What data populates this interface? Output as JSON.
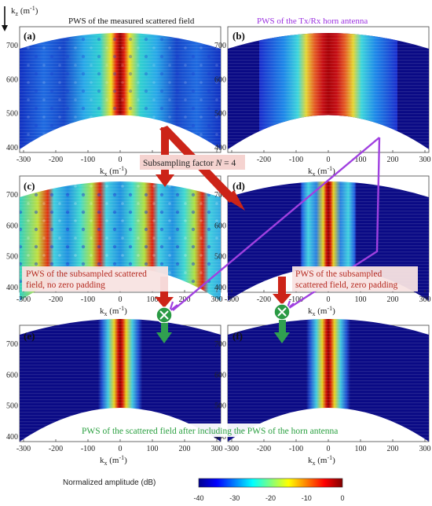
{
  "axis": {
    "kz_label": "k",
    "kz_sub": "z",
    "kz_unit": " (m",
    "kz_exp": "-1",
    "kz_close": ")",
    "kx_label": "k",
    "kx_sub": "x",
    "kx_unit": " (m",
    "kx_exp": "-1",
    "kx_close": ")",
    "x_ticks": [
      "-300",
      "-200",
      "-100",
      "0",
      "100",
      "200",
      "300"
    ],
    "y_ticks": [
      "700",
      "600",
      "500",
      "400"
    ]
  },
  "panels": {
    "a": {
      "letter": "(a)",
      "title": "PWS of the measured scattered field"
    },
    "b": {
      "letter": "(b)",
      "title": "PWS of the Tx/Rx horn antenna"
    },
    "c": {
      "letter": "(c)"
    },
    "d": {
      "letter": "(d)"
    },
    "e": {
      "letter": "(e)"
    },
    "f": {
      "letter": "(f)"
    }
  },
  "annotations": {
    "subsampling_prefix": "Subsampling factor ",
    "subsampling_N": "N",
    "subsampling_suffix": " = 4",
    "c_note_line1": "PWS of the subsampled scattered",
    "c_note_line2": "field, no zero padding",
    "d_note_line1": "PWS of the subsampled",
    "d_note_line2": "scattered field, zero padding",
    "bottom_note": "PWS of the scattered field  after including the PWS of the horn antenna"
  },
  "colorbar": {
    "label": "Normalized amplitude (dB)",
    "ticks": [
      "-40",
      "-30",
      "-20",
      "-10",
      "0"
    ]
  },
  "colors": {
    "red_note": "#b52a20",
    "purple_title": "#9b30e0",
    "green_note": "#2aa040",
    "arrow_red": "#cc2418",
    "arrow_purple": "#a040e0",
    "arrow_green": "#30a050",
    "panel_bg": "#0a0a85"
  }
}
